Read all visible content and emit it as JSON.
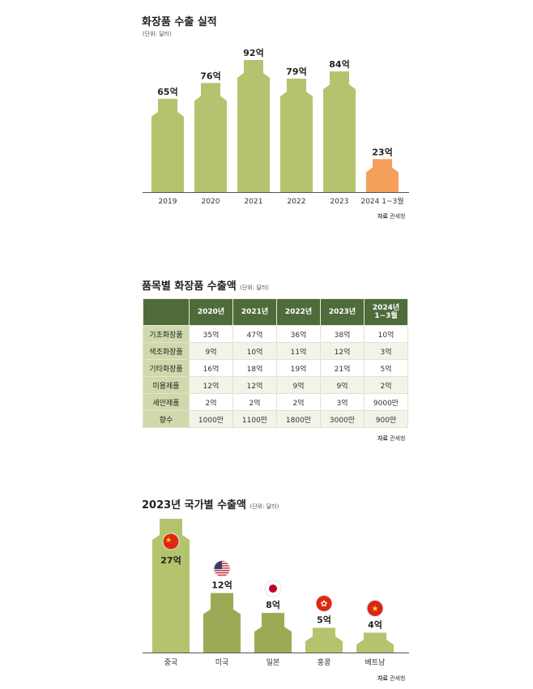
{
  "chart_data": [
    {
      "type": "bar",
      "title": "화장품 수출 실적",
      "unit": "(단위: 달러)",
      "categories": [
        "2019",
        "2020",
        "2021",
        "2022",
        "2023",
        "2024 1~3월"
      ],
      "values": [
        65,
        76,
        92,
        79,
        84,
        23
      ],
      "labels": [
        "65억",
        "76억",
        "92억",
        "79억",
        "84억",
        "23억"
      ],
      "colors": [
        "#b4c46e",
        "#b4c46e",
        "#b4c46e",
        "#b4c46e",
        "#b4c46e",
        "#f4a05a"
      ],
      "source": {
        "label": "자료",
        "text": "관세청"
      }
    },
    {
      "type": "table",
      "title": "품목별 화장품 수출액",
      "unit": "(단위: 달러)",
      "columns": [
        "",
        "2020년",
        "2021년",
        "2022년",
        "2023년",
        "2024년 1~3월"
      ],
      "rows": [
        [
          "기초화장품",
          "35억",
          "47억",
          "36억",
          "38억",
          "10억"
        ],
        [
          "색조화장품",
          "9억",
          "10억",
          "11억",
          "12억",
          "3억"
        ],
        [
          "기타화장품",
          "16억",
          "18억",
          "19억",
          "21억",
          "5억"
        ],
        [
          "미용제품",
          "12억",
          "12억",
          "9억",
          "9억",
          "2억"
        ],
        [
          "세안제품",
          "2억",
          "2억",
          "2억",
          "3억",
          "9000만"
        ],
        [
          "향수",
          "1000만",
          "1100만",
          "1800만",
          "3000만",
          "900만"
        ]
      ],
      "source": {
        "label": "자료",
        "text": "관세청"
      }
    },
    {
      "type": "bar",
      "title": "2023년 국가별 수출액",
      "unit": "(단위: 달러)",
      "categories": [
        "중국",
        "미국",
        "일본",
        "홍콩",
        "베트남"
      ],
      "values": [
        27,
        12,
        8,
        5,
        4
      ],
      "labels": [
        "27억",
        "12억",
        "8억",
        "5억",
        "4억"
      ],
      "flags": [
        "china-flag",
        "usa-flag",
        "japan-flag",
        "hongkong-flag",
        "vietnam-flag"
      ],
      "colors": [
        "#b4c46e",
        "#9bab55",
        "#9bab55",
        "#b4c46e",
        "#b4c46e"
      ],
      "source": {
        "label": "자료",
        "text": "관세청"
      }
    }
  ]
}
